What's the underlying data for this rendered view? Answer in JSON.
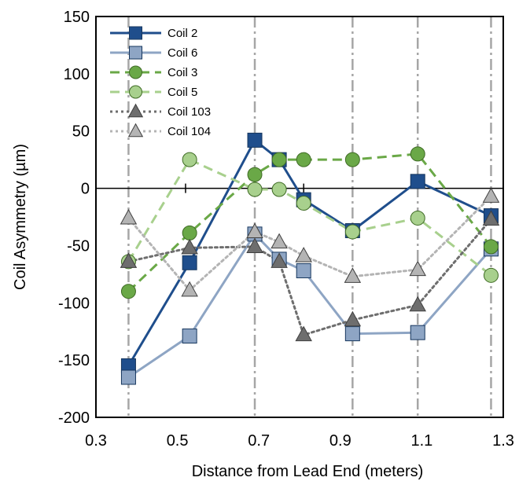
{
  "chart_data": {
    "type": "line",
    "title": "",
    "xlabel": "Distance from Lead End (meters)",
    "ylabel": "Coil Asymmetry (µm)",
    "xlim": [
      0.3,
      1.3
    ],
    "ylim": [
      -200,
      150
    ],
    "x_ticks": [
      "0.3",
      "0.5",
      "0.7",
      "0.9",
      "1.1",
      "1.3"
    ],
    "y_ticks": [
      "-200",
      "-150",
      "-100",
      "-50",
      "0",
      "50",
      "100",
      "150"
    ],
    "x_tick_values": [
      0.3,
      0.5,
      0.7,
      0.9,
      1.1,
      1.3
    ],
    "y_tick_values": [
      -200,
      -150,
      -100,
      -50,
      0,
      50,
      100,
      150
    ],
    "grid": "vertical dash-dot lines at measurement positions",
    "vertical_reference_lines_x": [
      0.38,
      0.69,
      0.93,
      1.09,
      1.27
    ],
    "zero_line_ticks_x": [
      0.52,
      0.81
    ],
    "legend_position": "top-left",
    "series": [
      {
        "name": "Coil 2",
        "color": "#1F4E8C",
        "marker": "square",
        "line_style": "solid",
        "points": [
          [
            0.38,
            -155
          ],
          [
            0.53,
            -65
          ],
          [
            0.69,
            42
          ],
          [
            0.75,
            25
          ],
          [
            0.81,
            -10
          ],
          [
            0.93,
            -37
          ],
          [
            1.09,
            6
          ],
          [
            1.27,
            -24
          ]
        ]
      },
      {
        "name": "Coil 6",
        "color": "#8EA5C4",
        "marker": "square",
        "line_style": "solid",
        "points": [
          [
            0.38,
            -165
          ],
          [
            0.53,
            -129
          ],
          [
            0.69,
            -40
          ],
          [
            0.75,
            -62
          ],
          [
            0.81,
            -72
          ],
          [
            0.93,
            -127
          ],
          [
            1.09,
            -126
          ],
          [
            1.27,
            -53
          ]
        ]
      },
      {
        "name": "Coil 3",
        "color": "#6AA847",
        "marker": "circle",
        "line_style": "dashed",
        "points": [
          [
            0.38,
            -90
          ],
          [
            0.53,
            -39
          ],
          [
            0.69,
            12
          ],
          [
            0.75,
            25
          ],
          [
            0.81,
            25
          ],
          [
            0.93,
            25
          ],
          [
            1.09,
            30
          ],
          [
            1.27,
            -51
          ]
        ]
      },
      {
        "name": "Coil 5",
        "color": "#A8D08D",
        "marker": "circle",
        "line_style": "dashed",
        "points": [
          [
            0.38,
            -64
          ],
          [
            0.53,
            25
          ],
          [
            0.69,
            -1
          ],
          [
            0.75,
            -1
          ],
          [
            0.81,
            -13
          ],
          [
            0.93,
            -38
          ],
          [
            1.09,
            -26
          ],
          [
            1.27,
            -76
          ]
        ]
      },
      {
        "name": "Coil 103",
        "color": "#6E6E6E",
        "marker": "triangle",
        "line_style": "dotted",
        "points": [
          [
            0.38,
            -64
          ],
          [
            0.53,
            -52
          ],
          [
            0.69,
            -51
          ],
          [
            0.75,
            -64
          ],
          [
            0.81,
            -128
          ],
          [
            0.93,
            -115
          ],
          [
            1.09,
            -102
          ],
          [
            1.27,
            -27
          ]
        ]
      },
      {
        "name": "Coil 104",
        "color": "#B4B4B4",
        "marker": "triangle",
        "line_style": "dotted",
        "points": [
          [
            0.38,
            -26
          ],
          [
            0.53,
            -89
          ],
          [
            0.69,
            -38
          ],
          [
            0.75,
            -47
          ],
          [
            0.81,
            -59
          ],
          [
            0.93,
            -77
          ],
          [
            1.09,
            -71
          ],
          [
            1.27,
            -7
          ]
        ]
      }
    ]
  }
}
